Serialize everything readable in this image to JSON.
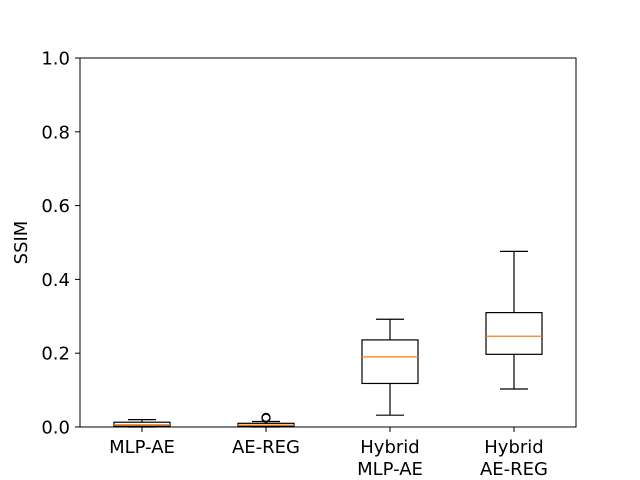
{
  "chart_data": {
    "type": "box",
    "title": "",
    "xlabel": "",
    "ylabel": "SSIM",
    "ylim": [
      0.0,
      1.0
    ],
    "yticks": [
      "0.0",
      "0.2",
      "0.4",
      "0.6",
      "0.8",
      "1.0"
    ],
    "grid": false,
    "categories": [
      {
        "lines": [
          "MLP-AE"
        ]
      },
      {
        "lines": [
          "AE-REG"
        ]
      },
      {
        "lines": [
          "Hybrid",
          "MLP-AE"
        ]
      },
      {
        "lines": [
          "Hybrid",
          "AE-REG"
        ]
      }
    ],
    "boxes": [
      {
        "whisker_low": 0.0,
        "q1": 0.002,
        "median": 0.006,
        "q3": 0.013,
        "whisker_high": 0.02,
        "outliers": []
      },
      {
        "whisker_low": 0.0,
        "q1": 0.002,
        "median": 0.005,
        "q3": 0.01,
        "whisker_high": 0.015,
        "outliers": [
          0.024,
          0.026
        ]
      },
      {
        "whisker_low": 0.032,
        "q1": 0.118,
        "median": 0.19,
        "q3": 0.236,
        "whisker_high": 0.292,
        "outliers": []
      },
      {
        "whisker_low": 0.103,
        "q1": 0.197,
        "median": 0.246,
        "q3": 0.31,
        "whisker_high": 0.476,
        "outliers": []
      }
    ],
    "colors": {
      "box": "#000000",
      "median": "#ff7f0e",
      "background": "#ffffff"
    }
  }
}
